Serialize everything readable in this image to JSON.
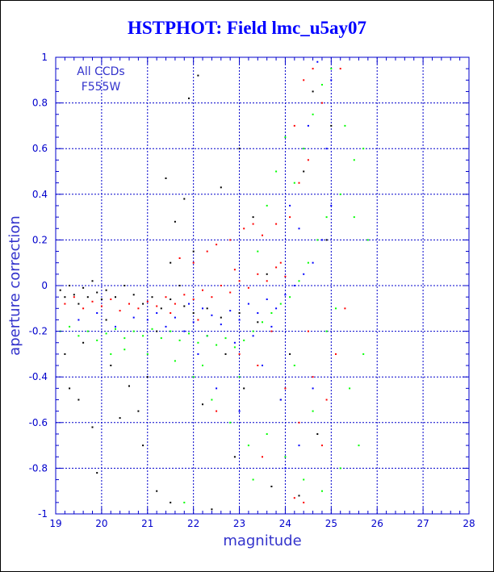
{
  "chart_data": {
    "type": "scatter",
    "title": "HSTPHOT: Field lmc_u5ay07",
    "xlabel": "magnitude",
    "ylabel": "aperture correction",
    "xlim": [
      19,
      28
    ],
    "ylim": [
      -1,
      1
    ],
    "x_ticks": [
      "19",
      "20",
      "21",
      "22",
      "23",
      "24",
      "25",
      "26",
      "27",
      "28"
    ],
    "y_ticks": [
      "-1",
      "-0.8",
      "-0.6",
      "-0.4",
      "-0.2",
      "0",
      "0.2",
      "0.4",
      "0.6",
      "0.8",
      "1"
    ],
    "grid": true,
    "annotations": [
      "All CCDs",
      "F555W"
    ],
    "colors": {
      "axis": "#0000cc",
      "grid": "#0000cc",
      "title": "#0000ff"
    },
    "series": [
      {
        "color": "#000000",
        "points": [
          [
            19.1,
            -0.02
          ],
          [
            19.2,
            -0.05
          ],
          [
            19.3,
            0.0
          ],
          [
            19.4,
            -0.04
          ],
          [
            19.5,
            -0.08
          ],
          [
            19.6,
            -0.01
          ],
          [
            19.7,
            -0.05
          ],
          [
            19.8,
            0.02
          ],
          [
            19.9,
            -0.03
          ],
          [
            20.0,
            -0.06
          ],
          [
            20.1,
            -0.02
          ],
          [
            20.3,
            -0.05
          ],
          [
            20.5,
            0.0
          ],
          [
            20.7,
            -0.04
          ],
          [
            20.9,
            -0.08
          ],
          [
            21.1,
            -0.05
          ],
          [
            21.3,
            -0.1
          ],
          [
            21.5,
            -0.06
          ],
          [
            21.8,
            -0.09
          ],
          [
            22.0,
            -0.12
          ],
          [
            22.3,
            -0.1
          ],
          [
            22.6,
            -0.14
          ],
          [
            23.0,
            -0.12
          ],
          [
            23.4,
            -0.16
          ],
          [
            19.2,
            -0.3
          ],
          [
            19.3,
            -0.45
          ],
          [
            19.5,
            -0.5
          ],
          [
            19.6,
            -0.25
          ],
          [
            19.8,
            -0.62
          ],
          [
            19.9,
            -0.82
          ],
          [
            20.2,
            -0.35
          ],
          [
            20.4,
            -0.58
          ],
          [
            20.6,
            -0.44
          ],
          [
            20.9,
            -0.7
          ],
          [
            21.0,
            -0.4
          ],
          [
            21.2,
            -0.9
          ],
          [
            21.5,
            -0.95
          ],
          [
            21.4,
            0.47
          ],
          [
            21.6,
            0.28
          ],
          [
            21.8,
            0.38
          ],
          [
            21.5,
            0.1
          ],
          [
            22.0,
            0.15
          ],
          [
            22.1,
            0.92
          ],
          [
            21.9,
            0.82
          ],
          [
            22.6,
            0.43
          ],
          [
            22.2,
            -0.52
          ],
          [
            22.7,
            -0.3
          ],
          [
            23.1,
            -0.45
          ],
          [
            23.3,
            0.3
          ],
          [
            23.6,
            0.05
          ],
          [
            23.9,
            -0.5
          ],
          [
            24.1,
            -0.3
          ],
          [
            24.4,
            0.5
          ],
          [
            24.7,
            -0.65
          ],
          [
            24.9,
            0.2
          ],
          [
            22.4,
            -0.98
          ],
          [
            22.9,
            -0.75
          ],
          [
            23.7,
            -0.88
          ],
          [
            21.2,
            -0.2
          ],
          [
            20.1,
            -0.15
          ],
          [
            20.8,
            -0.55
          ],
          [
            24.3,
            -0.92
          ],
          [
            25.0,
            0.7
          ],
          [
            24.6,
            0.85
          ],
          [
            23.0,
            0.6
          ],
          [
            21.7,
            0.0
          ]
        ]
      },
      {
        "color": "#ff0000",
        "points": [
          [
            19.2,
            -0.08
          ],
          [
            19.4,
            -0.05
          ],
          [
            19.6,
            -0.1
          ],
          [
            19.8,
            -0.07
          ],
          [
            20.0,
            -0.09
          ],
          [
            20.2,
            -0.06
          ],
          [
            20.4,
            -0.11
          ],
          [
            20.6,
            -0.08
          ],
          [
            20.8,
            -0.1
          ],
          [
            21.0,
            -0.07
          ],
          [
            21.2,
            -0.09
          ],
          [
            21.4,
            -0.05
          ],
          [
            21.6,
            -0.08
          ],
          [
            21.8,
            -0.04
          ],
          [
            22.0,
            -0.06
          ],
          [
            22.2,
            -0.02
          ],
          [
            22.4,
            -0.05
          ],
          [
            22.6,
            0.0
          ],
          [
            22.8,
            -0.03
          ],
          [
            23.0,
            0.02
          ],
          [
            23.2,
            -0.01
          ],
          [
            23.4,
            0.05
          ],
          [
            23.6,
            0.02
          ],
          [
            23.8,
            0.08
          ],
          [
            24.0,
            0.04
          ],
          [
            21.7,
            0.12
          ],
          [
            22.0,
            0.1
          ],
          [
            22.3,
            0.15
          ],
          [
            22.5,
            0.18
          ],
          [
            22.8,
            0.2
          ],
          [
            23.1,
            0.25
          ],
          [
            23.3,
            0.27
          ],
          [
            23.5,
            0.22
          ],
          [
            23.8,
            0.27
          ],
          [
            24.1,
            0.3
          ],
          [
            24.3,
            0.45
          ],
          [
            24.5,
            0.55
          ],
          [
            24.2,
            0.7
          ],
          [
            24.6,
            0.95
          ],
          [
            24.4,
            0.9
          ],
          [
            24.8,
            0.8
          ],
          [
            25.2,
            0.95
          ],
          [
            23.0,
            -0.3
          ],
          [
            23.4,
            -0.35
          ],
          [
            23.7,
            -0.2
          ],
          [
            24.0,
            -0.45
          ],
          [
            24.3,
            -0.6
          ],
          [
            24.6,
            -0.4
          ],
          [
            24.8,
            -0.7
          ],
          [
            23.5,
            -0.75
          ],
          [
            22.5,
            -0.55
          ],
          [
            24.2,
            -0.93
          ],
          [
            24.4,
            -0.95
          ],
          [
            23.9,
            0.1
          ],
          [
            22.9,
            0.07
          ],
          [
            24.5,
            -0.2
          ],
          [
            24.9,
            -0.5
          ],
          [
            25.1,
            -0.3
          ],
          [
            25.3,
            -0.1
          ],
          [
            22.1,
            -0.15
          ],
          [
            21.5,
            -0.12
          ]
        ]
      },
      {
        "color": "#0000ff",
        "points": [
          [
            21.0,
            -0.15
          ],
          [
            21.2,
            -0.12
          ],
          [
            21.4,
            -0.18
          ],
          [
            21.6,
            -0.14
          ],
          [
            21.8,
            -0.2
          ],
          [
            22.0,
            -0.16
          ],
          [
            22.2,
            -0.1
          ],
          [
            22.4,
            -0.13
          ],
          [
            22.6,
            -0.17
          ],
          [
            22.8,
            -0.11
          ],
          [
            23.0,
            -0.15
          ],
          [
            23.2,
            -0.08
          ],
          [
            23.4,
            -0.12
          ],
          [
            23.6,
            -0.06
          ],
          [
            23.8,
            -0.1
          ],
          [
            24.0,
            -0.04
          ],
          [
            24.2,
            0.0
          ],
          [
            24.4,
            0.05
          ],
          [
            24.6,
            0.1
          ],
          [
            24.8,
            0.2
          ],
          [
            25.0,
            0.35
          ],
          [
            24.5,
            0.7
          ],
          [
            24.7,
            0.98
          ],
          [
            24.9,
            0.6
          ],
          [
            19.5,
            -0.15
          ],
          [
            19.9,
            -0.12
          ],
          [
            20.3,
            -0.18
          ],
          [
            20.7,
            -0.14
          ],
          [
            22.1,
            -0.3
          ],
          [
            22.5,
            -0.45
          ],
          [
            23.0,
            -0.55
          ],
          [
            23.5,
            -0.35
          ],
          [
            23.9,
            -0.5
          ],
          [
            24.3,
            -0.7
          ],
          [
            24.6,
            -0.45
          ],
          [
            22.9,
            -0.25
          ],
          [
            23.3,
            -0.22
          ],
          [
            23.7,
            -0.18
          ],
          [
            24.1,
            0.35
          ],
          [
            24.3,
            0.25
          ],
          [
            21.9,
            -0.08
          ],
          [
            22.3,
            -0.22
          ],
          [
            24.0,
            -0.8
          ],
          [
            25.0,
            0.9
          ]
        ]
      },
      {
        "color": "#00ff00",
        "points": [
          [
            19.1,
            -0.2
          ],
          [
            19.3,
            -0.18
          ],
          [
            19.5,
            -0.22
          ],
          [
            19.7,
            -0.2
          ],
          [
            19.9,
            -0.24
          ],
          [
            20.1,
            -0.21
          ],
          [
            20.3,
            -0.19
          ],
          [
            20.5,
            -0.23
          ],
          [
            20.7,
            -0.2
          ],
          [
            20.9,
            -0.22
          ],
          [
            21.1,
            -0.19
          ],
          [
            21.3,
            -0.23
          ],
          [
            21.5,
            -0.2
          ],
          [
            21.7,
            -0.24
          ],
          [
            21.9,
            -0.21
          ],
          [
            22.1,
            -0.25
          ],
          [
            22.3,
            -0.22
          ],
          [
            22.5,
            -0.26
          ],
          [
            22.7,
            -0.23
          ],
          [
            22.9,
            -0.27
          ],
          [
            23.1,
            -0.24
          ],
          [
            23.3,
            -0.2
          ],
          [
            23.5,
            -0.16
          ],
          [
            23.7,
            -0.12
          ],
          [
            23.9,
            -0.08
          ],
          [
            24.1,
            -0.05
          ],
          [
            24.3,
            0.02
          ],
          [
            24.5,
            0.1
          ],
          [
            24.7,
            0.2
          ],
          [
            24.9,
            0.3
          ],
          [
            24.2,
            0.45
          ],
          [
            24.4,
            0.6
          ],
          [
            24.6,
            0.75
          ],
          [
            24.8,
            0.88
          ],
          [
            25.0,
            0.95
          ],
          [
            25.3,
            0.7
          ],
          [
            25.5,
            0.55
          ],
          [
            25.7,
            0.6
          ],
          [
            25.2,
            0.4
          ],
          [
            25.5,
            0.3
          ],
          [
            25.8,
            0.2
          ],
          [
            22.0,
            -0.4
          ],
          [
            22.4,
            -0.5
          ],
          [
            22.8,
            -0.6
          ],
          [
            23.2,
            -0.7
          ],
          [
            23.6,
            -0.65
          ],
          [
            24.0,
            -0.75
          ],
          [
            24.4,
            -0.85
          ],
          [
            24.8,
            -0.9
          ],
          [
            25.2,
            -0.8
          ],
          [
            25.6,
            -0.7
          ],
          [
            21.8,
            -0.95
          ],
          [
            23.3,
            -0.85
          ],
          [
            24.6,
            -0.55
          ],
          [
            25.4,
            -0.45
          ],
          [
            25.7,
            -0.3
          ],
          [
            23.8,
            0.5
          ],
          [
            24.0,
            0.65
          ],
          [
            23.6,
            0.35
          ],
          [
            23.4,
            0.15
          ],
          [
            20.5,
            -0.28
          ],
          [
            20.2,
            -0.3
          ],
          [
            21.0,
            -0.3
          ],
          [
            21.6,
            -0.33
          ],
          [
            22.2,
            -0.35
          ],
          [
            23.0,
            -0.4
          ],
          [
            24.2,
            -0.35
          ],
          [
            24.9,
            -0.2
          ],
          [
            25.1,
            -0.1
          ]
        ]
      }
    ]
  }
}
